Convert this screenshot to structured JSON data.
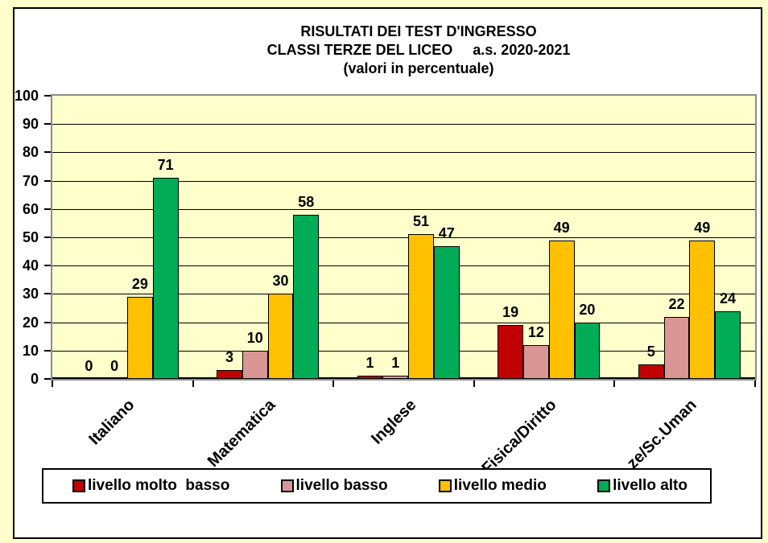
{
  "chart_data": {
    "type": "bar",
    "title_lines": [
      "RISULTATI DEI TEST D'INGRESSO",
      "CLASSI TERZE DEL LICEO     a.s. 2020-2021",
      "(valori in percentuale)"
    ],
    "categories": [
      "Italiano",
      "Matematica",
      "Inglese",
      "Fisica/Diritto",
      "ze/Sc.Uman"
    ],
    "series": [
      {
        "name": "livello molto  basso",
        "color": "#C00000",
        "values": [
          0,
          3,
          1,
          19,
          5
        ]
      },
      {
        "name": "livello basso",
        "color": "#D99694",
        "values": [
          0,
          10,
          1,
          12,
          22
        ]
      },
      {
        "name": "livello medio",
        "color": "#FFC000",
        "values": [
          29,
          30,
          51,
          49,
          49
        ]
      },
      {
        "name": "livello alto",
        "color": "#00AC55",
        "values": [
          71,
          58,
          47,
          20,
          24
        ]
      }
    ],
    "ylim": [
      0,
      100
    ],
    "yticks": [
      0,
      10,
      20,
      30,
      40,
      50,
      60,
      70,
      80,
      90,
      100
    ],
    "grid": true,
    "value_labels": true,
    "legend_position": "bottom"
  },
  "colors": {
    "page_background": "#FFFFCC",
    "chart_background": "#FFFFFF",
    "chart_border": "#000000",
    "plot_background": "#FFFFCC",
    "plot_border": "#8C8C8C",
    "gridline": "#000000",
    "text": "#000000"
  }
}
